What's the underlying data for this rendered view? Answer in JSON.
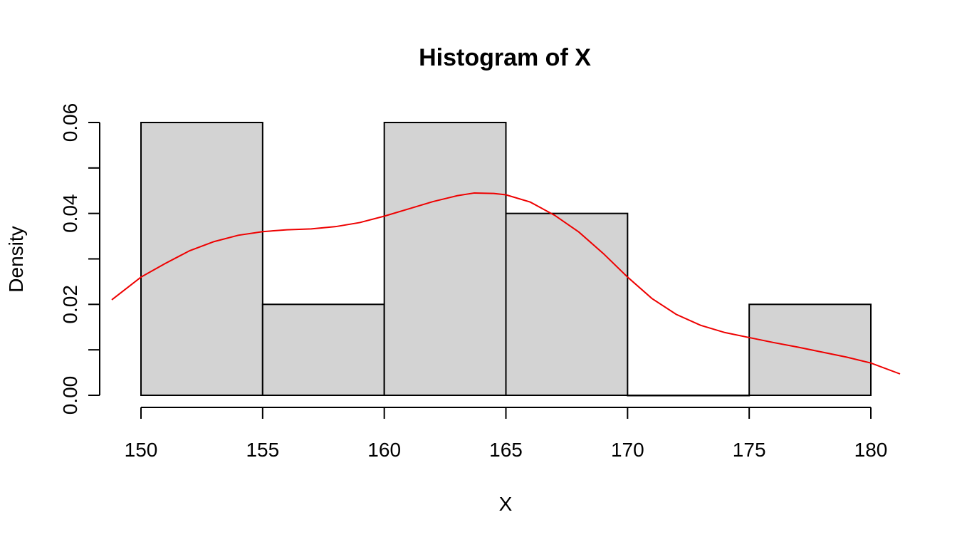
{
  "chart_data": {
    "type": "bar",
    "title": "Histogram of X",
    "xlabel": "X",
    "ylabel": "Density",
    "bins": [
      {
        "start": 150,
        "end": 155,
        "density": 0.06
      },
      {
        "start": 155,
        "end": 160,
        "density": 0.02
      },
      {
        "start": 160,
        "end": 165,
        "density": 0.06
      },
      {
        "start": 165,
        "end": 170,
        "density": 0.04
      },
      {
        "start": 170,
        "end": 175,
        "density": 0.0
      },
      {
        "start": 175,
        "end": 180,
        "density": 0.02
      }
    ],
    "x_ticks": [
      150,
      155,
      160,
      165,
      170,
      175,
      180
    ],
    "x_tick_labels": [
      "150",
      "155",
      "160",
      "165",
      "170",
      "175",
      "180"
    ],
    "y_ticks": [
      0,
      0.01,
      0.02,
      0.03,
      0.04,
      0.05,
      0.06
    ],
    "y_tick_labels": [
      "0.00",
      "0.02",
      "0.04",
      "0.06"
    ],
    "y_labeled_ticks": [
      0,
      0.02,
      0.04,
      0.06
    ],
    "xlim": [
      148.8,
      181.2
    ],
    "ylim": [
      0,
      0.06
    ],
    "density_curve": {
      "color": "#ee0000",
      "x": [
        148.8,
        150,
        151,
        152,
        153,
        154,
        155,
        156,
        157,
        158,
        159,
        160,
        161,
        162,
        163,
        163.7,
        164.5,
        165,
        166,
        167,
        168,
        169,
        170,
        171,
        172,
        173,
        174,
        175,
        176,
        177,
        178,
        179,
        180,
        181.2
      ],
      "y": [
        0.021,
        0.026,
        0.029,
        0.0318,
        0.0338,
        0.0352,
        0.036,
        0.0364,
        0.0366,
        0.0371,
        0.038,
        0.0394,
        0.041,
        0.0426,
        0.0439,
        0.0445,
        0.0444,
        0.0441,
        0.0425,
        0.0396,
        0.0359,
        0.0312,
        0.026,
        0.0213,
        0.0178,
        0.0154,
        0.0138,
        0.0127,
        0.0116,
        0.0106,
        0.0095,
        0.0084,
        0.0071,
        0.0047
      ]
    },
    "grid": false,
    "bar_fill": "#d3d3d3"
  }
}
